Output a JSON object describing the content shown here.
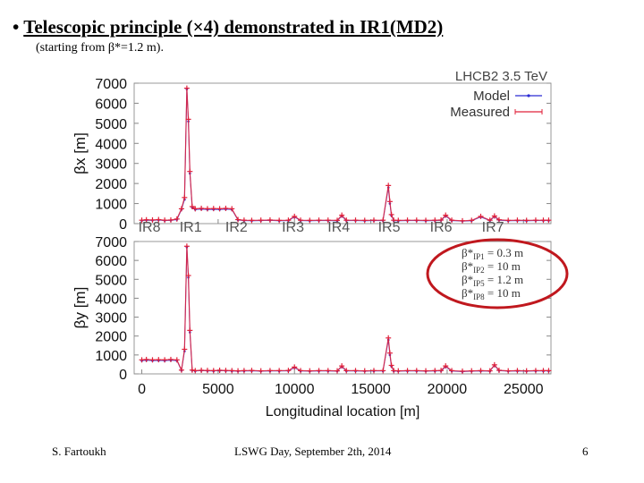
{
  "slide": {
    "bullet": "•",
    "title": "Telescopic principle (×4) demonstrated in IR1(MD2)",
    "subtitle": "(starting from β*=1.2 m).",
    "footer_left": "S. Fartoukh",
    "footer_center": "LSWG Day, September 2th, 2014",
    "footer_right": "6"
  },
  "annotation": {
    "lines": [
      {
        "sub": "IP1",
        "value": "= 0.3 m"
      },
      {
        "sub": "IP2",
        "value": "= 10 m"
      },
      {
        "sub": "IP5",
        "value": "= 1.2 m"
      },
      {
        "sub": "IP8",
        "value": "= 10 m"
      }
    ],
    "ellipse_color": "#c0181e"
  },
  "chart_data": [
    {
      "type": "line",
      "title": "LHCB2 3.5 TeV",
      "ylabel": "βx [m]",
      "xlim": [
        -500,
        26800
      ],
      "ylim": [
        0,
        7000
      ],
      "yticks": [
        0,
        1000,
        2000,
        3000,
        4000,
        5000,
        6000,
        7000
      ],
      "ir_labels": [
        {
          "label": "IR8",
          "x": 500
        },
        {
          "label": "IR1",
          "x": 3200
        },
        {
          "label": "IR2",
          "x": 6200
        },
        {
          "label": "IR3",
          "x": 9900
        },
        {
          "label": "IR4",
          "x": 12900
        },
        {
          "label": "IR5",
          "x": 16200
        },
        {
          "label": "IR6",
          "x": 19600
        },
        {
          "label": "IR7",
          "x": 23000
        }
      ],
      "series": [
        {
          "name": "Model",
          "color": "#2b2bd4",
          "x": [
            0,
            300,
            700,
            1100,
            1500,
            1900,
            2300,
            2600,
            2800,
            2950,
            3050,
            3150,
            3300,
            3500,
            3900,
            4300,
            4700,
            5100,
            5500,
            5900,
            6300,
            6700,
            7200,
            7800,
            8400,
            9000,
            9600,
            10000,
            10400,
            11000,
            11600,
            12200,
            12800,
            13100,
            13400,
            14000,
            14600,
            15200,
            15800,
            16150,
            16250,
            16350,
            16500,
            16800,
            17400,
            18000,
            18600,
            19200,
            19600,
            19900,
            20300,
            21000,
            21600,
            22200,
            22800,
            23100,
            23400,
            24000,
            24600,
            25200,
            25800,
            26300,
            26650
          ],
          "y": [
            150,
            170,
            160,
            180,
            150,
            160,
            200,
            700,
            1200,
            6700,
            5100,
            2500,
            800,
            700,
            720,
            700,
            710,
            700,
            720,
            700,
            180,
            150,
            140,
            150,
            160,
            140,
            150,
            330,
            150,
            140,
            150,
            150,
            140,
            380,
            150,
            150,
            140,
            150,
            150,
            1800,
            1000,
            400,
            150,
            140,
            150,
            150,
            140,
            150,
            160,
            380,
            150,
            120,
            140,
            330,
            150,
            350,
            170,
            140,
            150,
            140,
            150,
            150,
            150
          ]
        },
        {
          "name": "Measured",
          "color": "#e0203a",
          "x": [
            0,
            300,
            700,
            1100,
            1500,
            1900,
            2300,
            2600,
            2800,
            2950,
            3050,
            3150,
            3300,
            3500,
            3900,
            4300,
            4700,
            5100,
            5500,
            5900,
            6300,
            6700,
            7200,
            7800,
            8400,
            9000,
            9600,
            10000,
            10400,
            11000,
            11600,
            12200,
            12800,
            13100,
            13400,
            14000,
            14600,
            15200,
            15800,
            16150,
            16250,
            16350,
            16500,
            16800,
            17400,
            18000,
            18600,
            19200,
            19600,
            19900,
            20300,
            21000,
            21600,
            22200,
            22800,
            23100,
            23400,
            24000,
            24600,
            25200,
            25800,
            26300,
            26650
          ],
          "y": [
            170,
            190,
            180,
            200,
            170,
            180,
            230,
            740,
            1300,
            6750,
            5200,
            2600,
            850,
            740,
            760,
            740,
            750,
            740,
            760,
            740,
            200,
            170,
            160,
            170,
            180,
            160,
            170,
            360,
            170,
            160,
            170,
            170,
            160,
            420,
            170,
            170,
            160,
            170,
            170,
            1900,
            1100,
            450,
            170,
            160,
            170,
            170,
            160,
            170,
            180,
            420,
            170,
            140,
            160,
            360,
            170,
            380,
            190,
            160,
            170,
            160,
            170,
            170,
            170
          ]
        }
      ]
    },
    {
      "type": "line",
      "xlabel": "Longitudinal location [m]",
      "ylabel": "βy [m]",
      "xlim": [
        -500,
        26800
      ],
      "ylim": [
        0,
        7000
      ],
      "yticks": [
        0,
        1000,
        2000,
        3000,
        4000,
        5000,
        6000,
        7000
      ],
      "xticks": [
        0,
        5000,
        10000,
        15000,
        20000,
        25000
      ],
      "series": [
        {
          "name": "Model",
          "color": "#2b2bd4",
          "x": [
            0,
            300,
            700,
            1100,
            1500,
            1900,
            2300,
            2600,
            2800,
            2950,
            3050,
            3150,
            3300,
            3500,
            3900,
            4300,
            4700,
            5100,
            5500,
            5900,
            6300,
            6700,
            7200,
            7800,
            8400,
            9000,
            9600,
            10000,
            10400,
            11000,
            11600,
            12200,
            12800,
            13100,
            13400,
            14000,
            14600,
            15200,
            15800,
            16150,
            16250,
            16350,
            16500,
            16800,
            17400,
            18000,
            18600,
            19200,
            19600,
            19900,
            20300,
            21000,
            21600,
            22200,
            22800,
            23100,
            23400,
            24000,
            24600,
            25200,
            25800,
            26300,
            26650
          ],
          "y": [
            700,
            720,
            700,
            710,
            700,
            720,
            700,
            180,
            1200,
            6700,
            5100,
            2200,
            180,
            150,
            170,
            160,
            150,
            170,
            160,
            150,
            140,
            150,
            160,
            140,
            150,
            150,
            160,
            330,
            150,
            140,
            150,
            150,
            140,
            380,
            150,
            150,
            140,
            150,
            150,
            1800,
            1000,
            400,
            150,
            140,
            150,
            150,
            140,
            150,
            160,
            380,
            150,
            120,
            140,
            150,
            140,
            450,
            170,
            140,
            150,
            140,
            150,
            150,
            150
          ]
        },
        {
          "name": "Measured",
          "color": "#e0203a",
          "x": [
            0,
            300,
            700,
            1100,
            1500,
            1900,
            2300,
            2600,
            2800,
            2950,
            3050,
            3150,
            3300,
            3500,
            3900,
            4300,
            4700,
            5100,
            5500,
            5900,
            6300,
            6700,
            7200,
            7800,
            8400,
            9000,
            9600,
            10000,
            10400,
            11000,
            11600,
            12200,
            12800,
            13100,
            13400,
            14000,
            14600,
            15200,
            15800,
            16150,
            16250,
            16350,
            16500,
            16800,
            17400,
            18000,
            18600,
            19200,
            19600,
            19900,
            20300,
            21000,
            21600,
            22200,
            22800,
            23100,
            23400,
            24000,
            24600,
            25200,
            25800,
            26300,
            26650
          ],
          "y": [
            740,
            760,
            740,
            750,
            740,
            760,
            740,
            200,
            1300,
            6750,
            5200,
            2300,
            200,
            170,
            190,
            180,
            170,
            190,
            180,
            170,
            160,
            170,
            180,
            160,
            170,
            170,
            180,
            360,
            170,
            160,
            170,
            170,
            160,
            420,
            170,
            170,
            160,
            170,
            170,
            1900,
            1100,
            450,
            170,
            160,
            170,
            170,
            160,
            170,
            180,
            420,
            170,
            140,
            160,
            170,
            160,
            480,
            190,
            160,
            170,
            160,
            170,
            170,
            170
          ]
        }
      ]
    }
  ]
}
